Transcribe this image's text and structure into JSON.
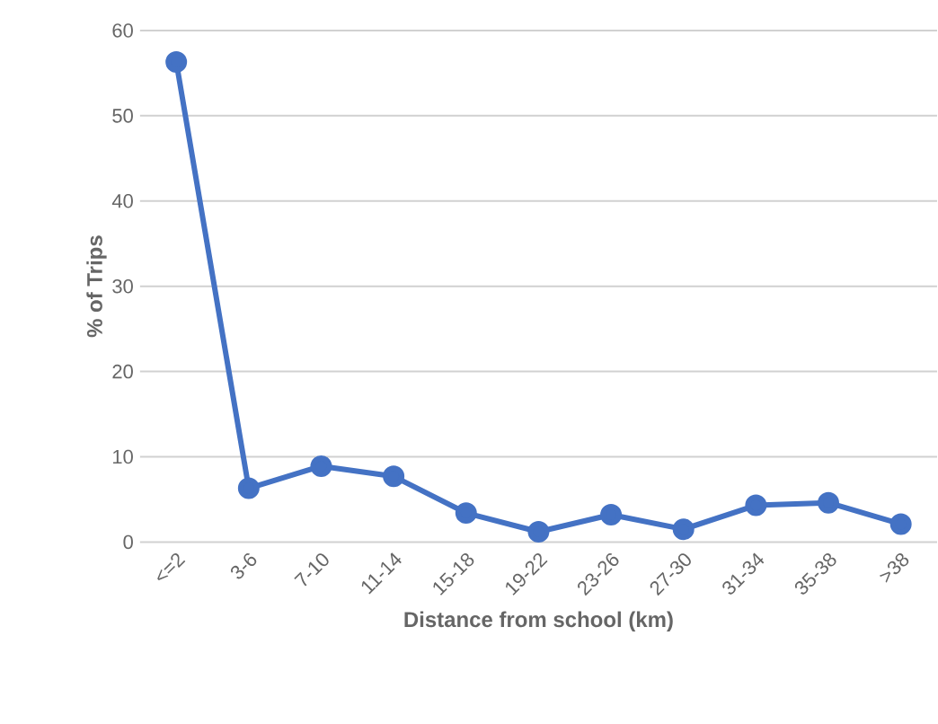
{
  "chart_data": {
    "type": "line",
    "xlabel": "Distance from school (km)",
    "ylabel": "% of Trips",
    "categories": [
      "<=2",
      "3-6",
      "7-10",
      "11-14",
      "15-18",
      "19-22",
      "23-26",
      "27-30",
      "31-34",
      "35-38",
      ">38"
    ],
    "series": [
      {
        "color": "#4472c4",
        "values": [
          56.3,
          6.3,
          8.9,
          7.7,
          3.4,
          1.2,
          3.2,
          1.5,
          4.3,
          4.6,
          2.1
        ]
      }
    ],
    "ylim": [
      0,
      60
    ],
    "yticks": [
      0,
      10,
      20,
      30,
      40,
      50,
      60
    ],
    "grid": "y",
    "marker": "circle",
    "line_style": "solid"
  }
}
